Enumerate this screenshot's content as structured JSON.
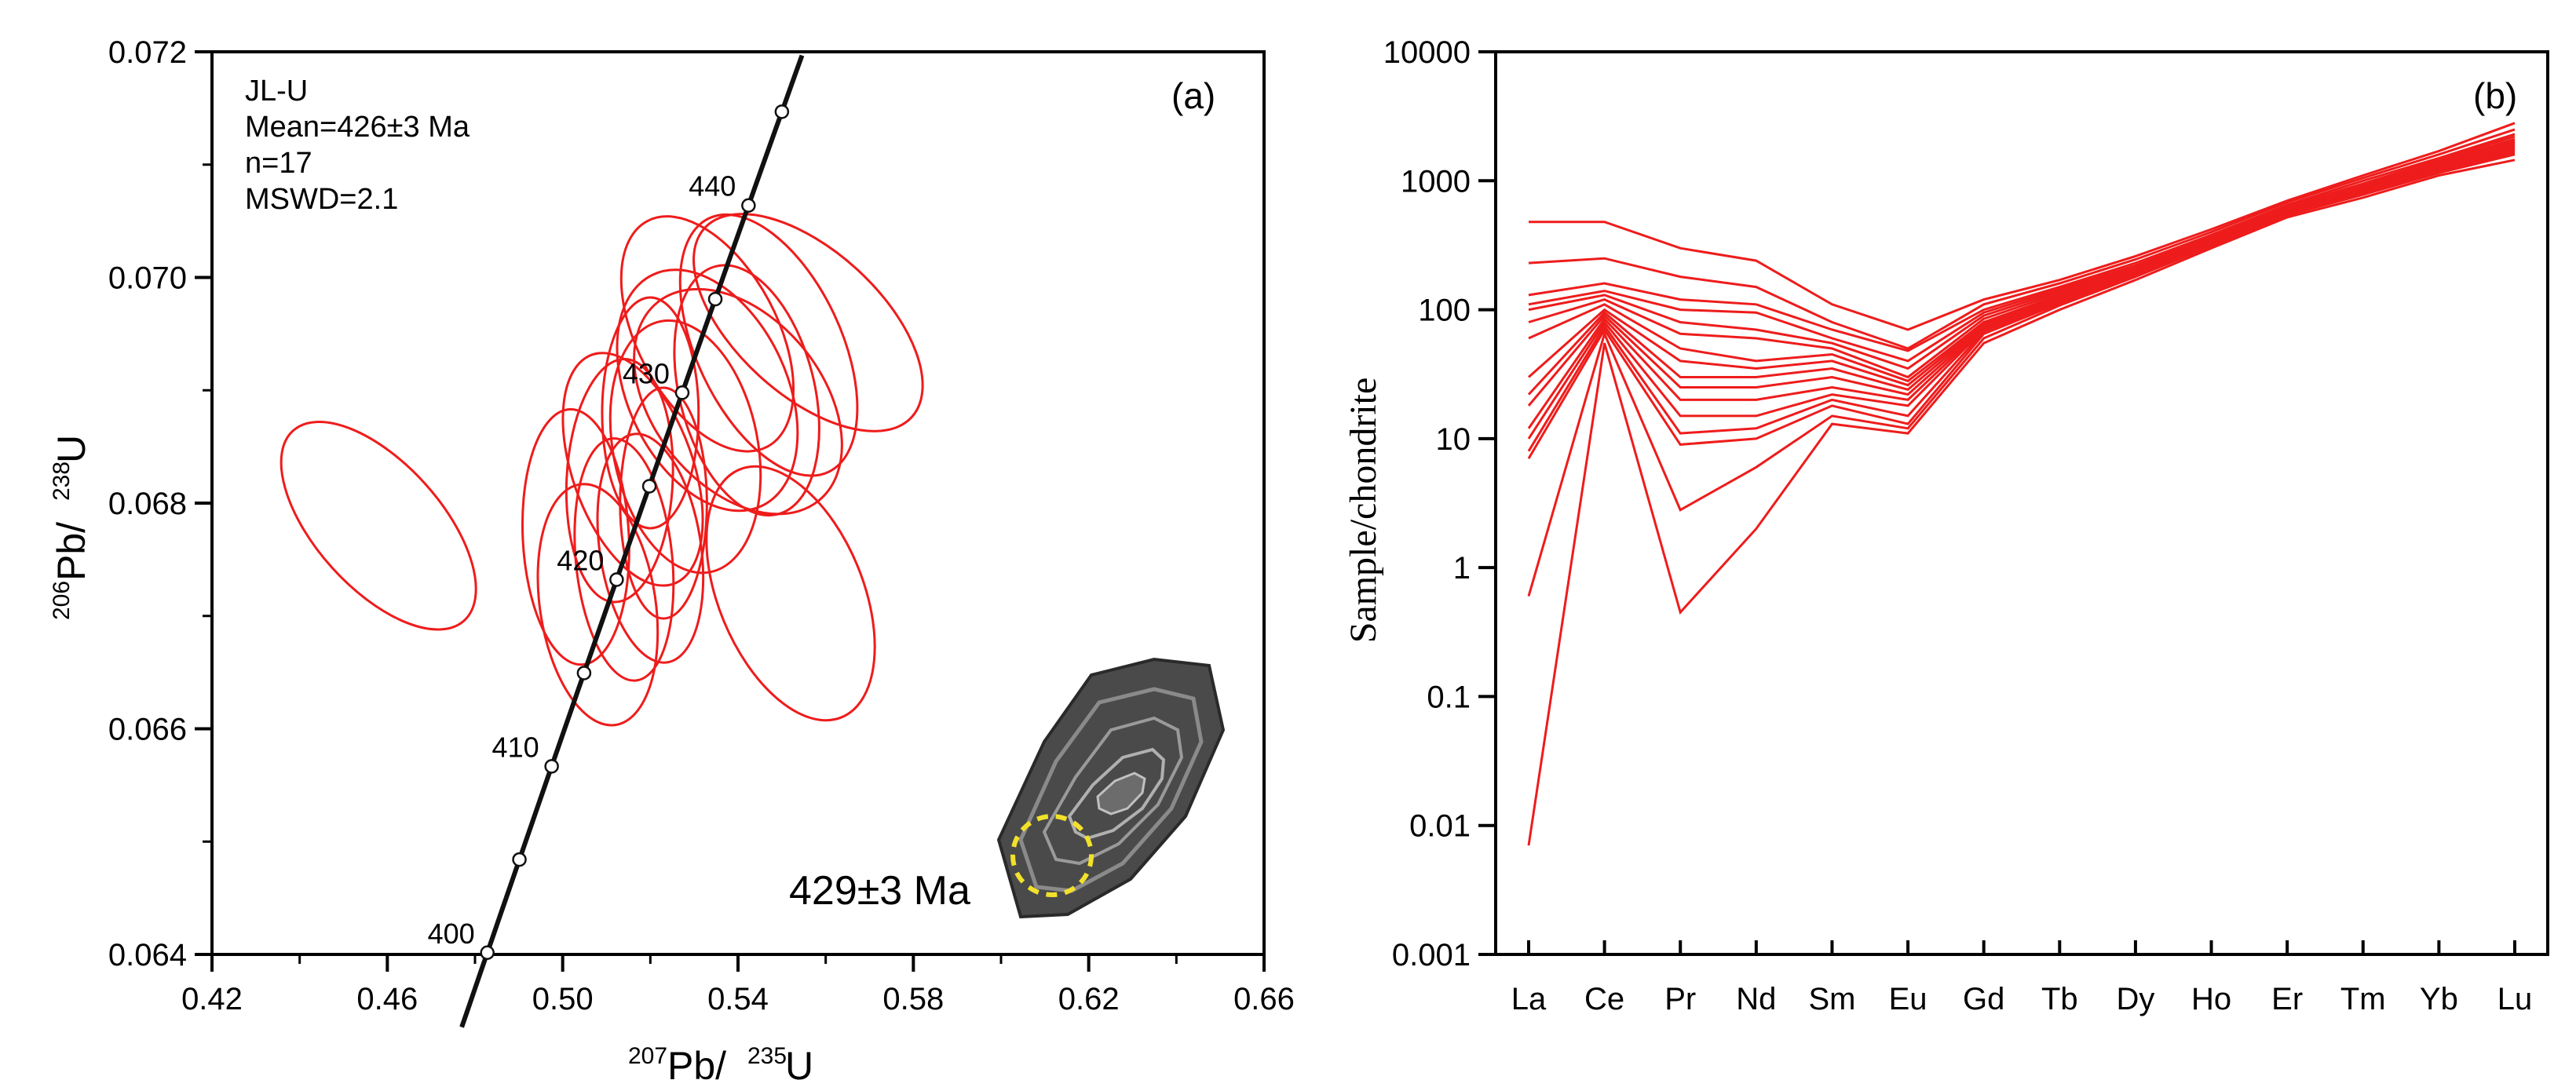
{
  "chart_data": [
    {
      "type": "scatter",
      "subtype": "concordia-ellipses",
      "panel_label": "(a)",
      "xlabel": {
        "sup": "207",
        "main": "Pb/",
        "sup2": "235",
        "tail": "U"
      },
      "ylabel": {
        "sup": "206",
        "main": "Pb/",
        "sup2": "238",
        "tail": "U"
      },
      "xlim": [
        0.42,
        0.66
      ],
      "ylim": [
        0.064,
        0.072
      ],
      "xticks": [
        "0.42",
        "0.46",
        "0.50",
        "0.54",
        "0.58",
        "0.62",
        "0.66"
      ],
      "yticks": [
        "0.064",
        "0.066",
        "0.068",
        "0.070",
        "0.072"
      ],
      "info": [
        "JL-U",
        "Mean=426±3 Ma",
        "n=17",
        "MSWD=2.1"
      ],
      "annotation": "429±3 Ma",
      "ellipse_color": "#ee1c1c",
      "concordia_ages": [
        400,
        405,
        410,
        415,
        420,
        425,
        430,
        435,
        440,
        445
      ],
      "concordia_labels": [
        {
          "age": 400,
          "text": "400"
        },
        {
          "age": 410,
          "text": "410"
        },
        {
          "age": 420,
          "text": "420"
        },
        {
          "age": 430,
          "text": "430"
        },
        {
          "age": 440,
          "text": "440"
        }
      ],
      "ellipses": [
        {
          "cx": 0.458,
          "cy": 0.0678,
          "rx": 0.026,
          "ry": 0.0013,
          "angle_deg": 60
        },
        {
          "cx": 0.516,
          "cy": 0.0683,
          "rx": 0.025,
          "ry": 0.0012,
          "angle_deg": 76
        },
        {
          "cx": 0.503,
          "cy": 0.0677,
          "rx": 0.022,
          "ry": 0.0013,
          "angle_deg": 88
        },
        {
          "cx": 0.508,
          "cy": 0.0671,
          "rx": 0.024,
          "ry": 0.0012,
          "angle_deg": 84
        },
        {
          "cx": 0.513,
          "cy": 0.0682,
          "rx": 0.022,
          "ry": 0.0012,
          "angle_deg": 92
        },
        {
          "cx": 0.52,
          "cy": 0.0688,
          "rx": 0.02,
          "ry": 0.0011,
          "angle_deg": 90
        },
        {
          "cx": 0.52,
          "cy": 0.0676,
          "rx": 0.021,
          "ry": 0.0011,
          "angle_deg": 84
        },
        {
          "cx": 0.528,
          "cy": 0.0685,
          "rx": 0.03,
          "ry": 0.0013,
          "angle_deg": 82
        },
        {
          "cx": 0.533,
          "cy": 0.069,
          "rx": 0.033,
          "ry": 0.0013,
          "angle_deg": 72
        },
        {
          "cx": 0.54,
          "cy": 0.0689,
          "rx": 0.035,
          "ry": 0.0013,
          "angle_deg": 62
        },
        {
          "cx": 0.533,
          "cy": 0.0695,
          "rx": 0.029,
          "ry": 0.0013,
          "angle_deg": 70
        },
        {
          "cx": 0.547,
          "cy": 0.0694,
          "rx": 0.03,
          "ry": 0.0015,
          "angle_deg": 72
        },
        {
          "cx": 0.556,
          "cy": 0.0696,
          "rx": 0.03,
          "ry": 0.0015,
          "angle_deg": 56
        },
        {
          "cx": 0.542,
          "cy": 0.069,
          "rx": 0.028,
          "ry": 0.0013,
          "angle_deg": 80
        },
        {
          "cx": 0.523,
          "cy": 0.068,
          "rx": 0.018,
          "ry": 0.0011,
          "angle_deg": 90
        },
        {
          "cx": 0.514,
          "cy": 0.0675,
          "rx": 0.02,
          "ry": 0.0012,
          "angle_deg": 86
        },
        {
          "cx": 0.552,
          "cy": 0.0672,
          "rx": 0.03,
          "ry": 0.0014,
          "angle_deg": 74
        }
      ]
    },
    {
      "type": "line",
      "scale": "log",
      "panel_label": "(b)",
      "ylabel": "Sample/chondrite",
      "xlabel": "",
      "categories": [
        "La",
        "Ce",
        "Pr",
        "Nd",
        "Sm",
        "Eu",
        "Gd",
        "Tb",
        "Dy",
        "Ho",
        "Er",
        "Tm",
        "Yb",
        "Lu"
      ],
      "yticks": [
        "0.001",
        "0.01",
        "0.1",
        "1",
        "10",
        "100",
        "1000",
        "10000"
      ],
      "ylim": [
        0.001,
        10000
      ],
      "color": "#ee1c1c",
      "series": [
        {
          "name": "s1",
          "values": [
            480,
            480,
            300,
            240,
            110,
            70,
            120,
            170,
            260,
            420,
            700,
            1100,
            1700,
            2800
          ]
        },
        {
          "name": "s2",
          "values": [
            230,
            250,
            180,
            150,
            80,
            50,
            110,
            160,
            245,
            400,
            680,
            1050,
            1600,
            2500
          ]
        },
        {
          "name": "s3",
          "values": [
            130,
            160,
            120,
            110,
            70,
            48,
            100,
            150,
            230,
            380,
            650,
            1000,
            1500,
            2300
          ]
        },
        {
          "name": "s4",
          "values": [
            110,
            140,
            100,
            95,
            60,
            40,
            95,
            145,
            220,
            370,
            630,
            950,
            1450,
            2200
          ]
        },
        {
          "name": "s5",
          "values": [
            100,
            130,
            80,
            70,
            55,
            35,
            90,
            140,
            215,
            360,
            610,
            920,
            1400,
            2100
          ]
        },
        {
          "name": "s6",
          "values": [
            80,
            120,
            65,
            60,
            50,
            30,
            85,
            135,
            210,
            355,
            600,
            900,
            1380,
            2050
          ]
        },
        {
          "name": "s7",
          "values": [
            60,
            110,
            50,
            40,
            45,
            28,
            80,
            130,
            205,
            350,
            590,
            880,
            1350,
            2000
          ]
        },
        {
          "name": "s8",
          "values": [
            30,
            100,
            40,
            35,
            40,
            26,
            78,
            128,
            200,
            345,
            580,
            860,
            1320,
            1950
          ]
        },
        {
          "name": "s9",
          "values": [
            22,
            95,
            30,
            30,
            35,
            24,
            76,
            125,
            198,
            340,
            575,
            850,
            1300,
            1900
          ]
        },
        {
          "name": "s10",
          "values": [
            18,
            90,
            25,
            25,
            30,
            22,
            74,
            122,
            195,
            335,
            570,
            840,
            1280,
            1850
          ]
        },
        {
          "name": "s11",
          "values": [
            12,
            85,
            20,
            20,
            25,
            20,
            72,
            120,
            192,
            330,
            565,
            830,
            1250,
            1800
          ]
        },
        {
          "name": "s12",
          "values": [
            10,
            80,
            15,
            15,
            22,
            18,
            70,
            118,
            190,
            325,
            560,
            820,
            1220,
            1750
          ]
        },
        {
          "name": "s13",
          "values": [
            8,
            75,
            11,
            12,
            20,
            15,
            68,
            115,
            188,
            320,
            555,
            810,
            1200,
            1700
          ]
        },
        {
          "name": "s14",
          "values": [
            7,
            70,
            9,
            10,
            18,
            13,
            65,
            112,
            185,
            318,
            550,
            800,
            1180,
            1650
          ]
        },
        {
          "name": "s15",
          "values": [
            0.6,
            65,
            2.8,
            6,
            15,
            12,
            60,
            108,
            180,
            310,
            540,
            780,
            1150,
            1600
          ]
        },
        {
          "name": "s16",
          "values": [
            0.007,
            55,
            0.45,
            2,
            13,
            11,
            55,
            100,
            170,
            300,
            520,
            740,
            1100,
            1450
          ]
        }
      ]
    }
  ]
}
